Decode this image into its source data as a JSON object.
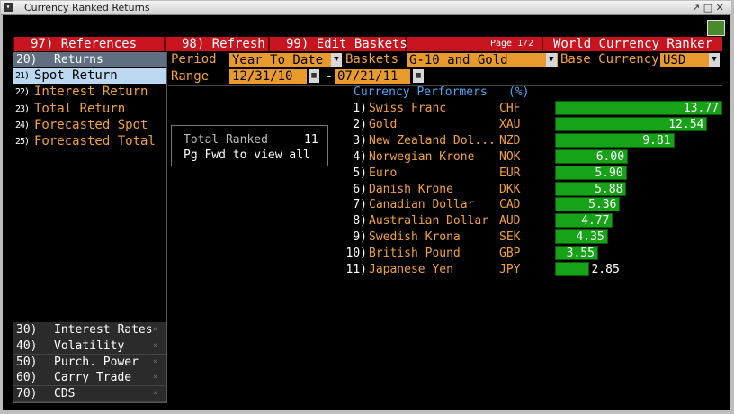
{
  "window": {
    "title": "Currency Ranked Returns"
  },
  "toolbar": {
    "buttons": [
      "97) References",
      "98) Refresh",
      "99) Edit Baskets"
    ],
    "page": "Page 1/2",
    "title": "World Currency Ranker"
  },
  "menu": {
    "header": {
      "number": "20)",
      "label": "Returns"
    },
    "items": [
      {
        "number": "21)",
        "label": "Spot Return"
      },
      {
        "number": "22)",
        "label": "Interest Return"
      },
      {
        "number": "23)",
        "label": "Total Return"
      },
      {
        "number": "24)",
        "label": "Forecasted Spot"
      },
      {
        "number": "25)",
        "label": "Forecasted Total"
      }
    ]
  },
  "bottom_menu": {
    "items": [
      {
        "number": "30)",
        "label": "Interest Rates"
      },
      {
        "number": "40)",
        "label": "Volatility"
      },
      {
        "number": "50)",
        "label": "Purch. Power"
      },
      {
        "number": "60)",
        "label": "Carry Trade"
      },
      {
        "number": "70)",
        "label": "CDS"
      }
    ]
  },
  "controls": {
    "period": {
      "label": "Period",
      "value": "Year To Date"
    },
    "baskets": {
      "label": "Baskets",
      "value": "G-10 and Gold"
    },
    "base_currency": {
      "label": "Base Currency",
      "value": "USD"
    },
    "range": {
      "label": "Range",
      "start": "12/31/10",
      "separator": "-",
      "end": "07/21/11"
    }
  },
  "info": {
    "label": "Total Ranked",
    "value": 11,
    "note": "Pg Fwd to view all"
  },
  "chart_data": {
    "type": "bar",
    "title": "Currency Performers",
    "unit": "(%)",
    "ranks": [
      "1)",
      "2)",
      "3)",
      "4)",
      "5)",
      "6)",
      "7)",
      "8)",
      "9)",
      "10)",
      "11)"
    ],
    "categories": [
      "Swiss Franc",
      "Gold",
      "New Zealand Dol...",
      "Norwegian Krone",
      "Euro",
      "Danish Krone",
      "Canadian Dollar",
      "Australian Dollar",
      "Swedish Krona",
      "British Pound",
      "Japanese Yen"
    ],
    "codes": [
      "CHF",
      "XAU",
      "NZD",
      "NOK",
      "EUR",
      "DKK",
      "CAD",
      "AUD",
      "SEK",
      "GBP",
      "JPY"
    ],
    "values": [
      13.77,
      12.54,
      9.81,
      6.0,
      5.9,
      5.88,
      5.36,
      4.77,
      4.35,
      3.55,
      2.85
    ],
    "value_labels": [
      "13.77",
      "12.54",
      "9.81",
      "6.00",
      "5.90",
      "5.88",
      "5.36",
      "4.77",
      "4.35",
      "3.55",
      "2.85"
    ],
    "color": "#17a317"
  }
}
